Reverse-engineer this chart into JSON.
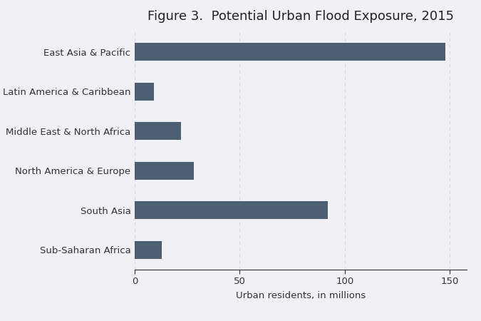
{
  "title": "Figure 3.  Potential Urban Flood Exposure, 2015",
  "categories": [
    "Sub-Saharan Africa",
    "South Asia",
    "North America & Europe",
    "Middle East & North Africa",
    "Latin America & Caribbean",
    "East Asia & Pacific"
  ],
  "values": [
    13,
    92,
    28,
    22,
    9,
    148
  ],
  "bar_color": "#4d5f74",
  "xlabel": "Urban residents, in millions",
  "xlim": [
    0,
    158
  ],
  "xticks": [
    0,
    50,
    100,
    150
  ],
  "background_color": "#f1f1f5",
  "grid_color": "#d8d8e0",
  "title_fontsize": 13,
  "label_fontsize": 9.5,
  "tick_fontsize": 9.5,
  "bar_height": 0.45
}
